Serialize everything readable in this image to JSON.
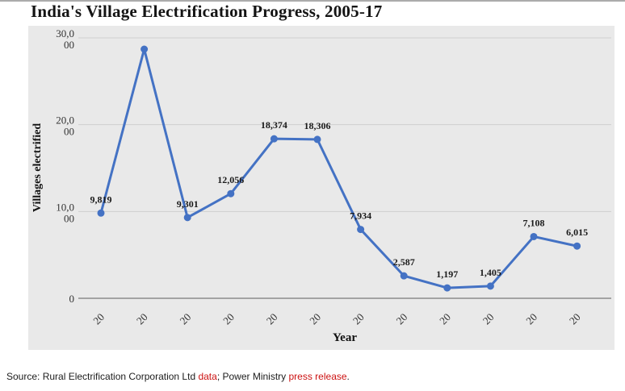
{
  "chart_data": {
    "type": "line",
    "title": "India's Village Electrification Progress, 2005-17",
    "xlabel": "Year",
    "ylabel": "Villages electrified",
    "x_tick_labels": [
      "20",
      "20",
      "20",
      "20",
      "20",
      "20",
      "20",
      "20",
      "20",
      "20",
      "20",
      "20"
    ],
    "values": [
      9819,
      28700,
      9301,
      12056,
      18374,
      18306,
      7934,
      2587,
      1197,
      1405,
      7108,
      6015
    ],
    "point_labels": [
      "9,819",
      "",
      "9,301",
      "12,056",
      "18,374",
      "18,306",
      "7,934",
      "2,587",
      "1,197",
      "1,405",
      "7,108",
      "6,015"
    ],
    "ylim": [
      0,
      30000
    ],
    "yticks": [
      {
        "value": 0,
        "lines": [
          "0"
        ]
      },
      {
        "value": 10000,
        "lines": [
          "10,0",
          "00"
        ]
      },
      {
        "value": 20000,
        "lines": [
          "20,0",
          "00"
        ]
      },
      {
        "value": 30000,
        "lines": [
          "30,0",
          "00"
        ]
      }
    ],
    "grid": true,
    "legend": "none",
    "line_color": "#4472c4",
    "plot_background": "#e9e9e9"
  },
  "source": {
    "text_before": "Source: Rural Electrification Corporation Ltd ",
    "link_data": "data",
    "text_middle": "; Power Ministry ",
    "link_press": "press release",
    "text_after": "."
  }
}
